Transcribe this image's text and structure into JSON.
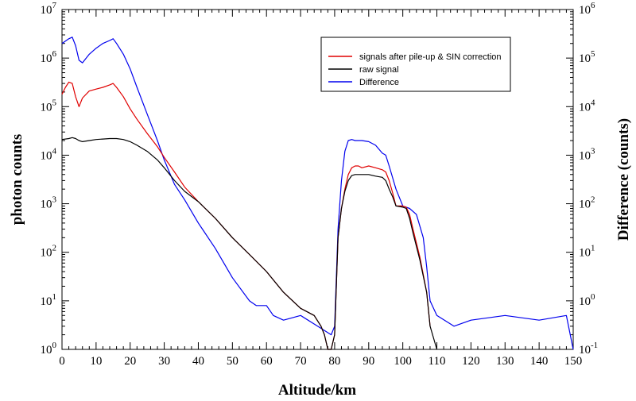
{
  "chart_data": {
    "type": "line",
    "title": "",
    "xlabel": "Altitude/km",
    "ylabel": "photon counts",
    "y2label": "Difference (counts)",
    "xlim": [
      0,
      150
    ],
    "ylim": [
      1,
      10000000
    ],
    "y2lim": [
      0.1,
      1000000
    ],
    "yscale": "log",
    "y2scale": "log",
    "x_ticks": [
      "0",
      "10",
      "20",
      "30",
      "40",
      "50",
      "60",
      "70",
      "80",
      "90",
      "100",
      "110",
      "120",
      "130",
      "140",
      "150"
    ],
    "y_ticks": [
      {
        "base": "10",
        "exp": "0"
      },
      {
        "base": "10",
        "exp": "1"
      },
      {
        "base": "10",
        "exp": "2"
      },
      {
        "base": "10",
        "exp": "3"
      },
      {
        "base": "10",
        "exp": "4"
      },
      {
        "base": "10",
        "exp": "5"
      },
      {
        "base": "10",
        "exp": "6"
      },
      {
        "base": "10",
        "exp": "7"
      }
    ],
    "y2_ticks": [
      {
        "base": "10",
        "exp": "-1"
      },
      {
        "base": "10",
        "exp": "0"
      },
      {
        "base": "10",
        "exp": "1"
      },
      {
        "base": "10",
        "exp": "2"
      },
      {
        "base": "10",
        "exp": "3"
      },
      {
        "base": "10",
        "exp": "4"
      },
      {
        "base": "10",
        "exp": "5"
      },
      {
        "base": "10",
        "exp": "6"
      }
    ],
    "legend_position": "top-right",
    "series": [
      {
        "name": "signals after pile-up & SIN correction",
        "color": "#e00000",
        "axis": "left",
        "x": [
          0,
          1,
          2,
          3,
          4,
          5,
          6,
          8,
          10,
          12,
          14,
          15,
          16,
          18,
          20,
          22,
          25,
          28,
          30,
          33,
          36,
          40,
          45,
          50,
          55,
          60,
          65,
          70,
          74,
          76,
          77,
          78,
          79,
          80,
          81,
          82,
          83,
          84,
          85,
          86,
          87,
          88,
          90,
          92,
          94,
          95,
          96,
          97,
          98,
          100,
          101,
          102,
          103,
          105,
          107,
          108
        ],
        "y": [
          180000,
          250000,
          320000,
          300000,
          160000,
          100000,
          150000,
          210000,
          230000,
          250000,
          280000,
          300000,
          250000,
          160000,
          90000,
          55000,
          28000,
          15000,
          9000,
          4500,
          2200,
          1100,
          500,
          200,
          90,
          40,
          15,
          7,
          5,
          3,
          2,
          1,
          1,
          2,
          200,
          800,
          2000,
          4000,
          5500,
          6000,
          6000,
          5500,
          6000,
          5500,
          5000,
          4500,
          3000,
          1700,
          900,
          900,
          850,
          600,
          300,
          80,
          15,
          3
        ]
      },
      {
        "name": "raw signal",
        "color": "#000000",
        "axis": "left",
        "x": [
          0,
          2,
          3,
          4,
          5,
          6,
          8,
          10,
          12,
          14,
          16,
          18,
          20,
          22,
          25,
          28,
          30,
          33,
          36,
          40,
          45,
          50,
          55,
          60,
          65,
          70,
          74,
          76,
          77,
          78,
          79,
          80,
          81,
          82,
          83,
          84,
          85,
          86,
          88,
          90,
          92,
          94,
          95,
          96,
          97,
          98,
          100,
          101,
          102,
          103,
          105,
          107,
          108,
          110
        ],
        "y": [
          21000,
          22000,
          23000,
          22000,
          20000,
          19000,
          20000,
          21000,
          21500,
          22000,
          22000,
          21000,
          19000,
          16000,
          12000,
          8000,
          5500,
          3000,
          1800,
          1100,
          500,
          200,
          90,
          40,
          15,
          7,
          5,
          3,
          2,
          1,
          1,
          2,
          200,
          800,
          1800,
          3000,
          3800,
          4000,
          4000,
          4000,
          3700,
          3500,
          3000,
          2000,
          1400,
          900,
          850,
          800,
          500,
          250,
          70,
          15,
          3,
          1
        ]
      },
      {
        "name": "Difference",
        "color": "#0000ee",
        "axis": "right",
        "x": [
          0,
          2,
          3,
          4,
          5,
          6,
          8,
          10,
          12,
          14,
          15,
          16,
          18,
          20,
          22,
          25,
          28,
          30,
          33,
          36,
          40,
          45,
          50,
          55,
          57,
          60,
          62,
          65,
          70,
          75,
          79,
          80,
          81,
          82,
          83,
          84,
          85,
          86,
          88,
          90,
          92,
          94,
          95,
          96,
          98,
          100,
          102,
          104,
          106,
          107,
          108,
          110,
          115,
          120,
          130,
          140,
          148,
          150
        ],
        "y": [
          200000,
          250000,
          270000,
          180000,
          90000,
          80000,
          120000,
          160000,
          200000,
          230000,
          250000,
          200000,
          120000,
          60000,
          25000,
          7000,
          2000,
          800,
          250,
          120,
          40,
          12,
          3,
          1,
          0.8,
          0.8,
          0.5,
          0.4,
          0.5,
          0.3,
          0.2,
          0.3,
          30,
          300,
          1200,
          2000,
          2100,
          2000,
          2000,
          1900,
          1600,
          1100,
          1000,
          600,
          200,
          90,
          80,
          60,
          20,
          5,
          1,
          0.5,
          0.3,
          0.4,
          0.5,
          0.4,
          0.5,
          0.1
        ]
      }
    ]
  }
}
